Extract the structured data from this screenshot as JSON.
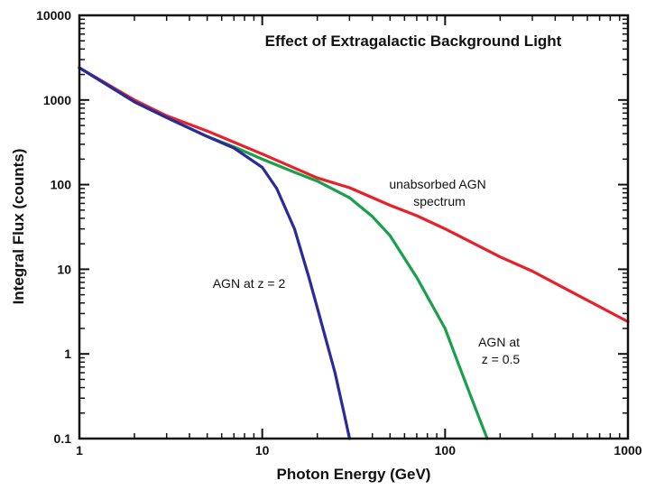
{
  "chart_data": {
    "type": "line",
    "title": "Effect of Extragalactic Background Light",
    "xlabel": "Photon Energy (GeV)",
    "ylabel": "Integral Flux (counts)",
    "xscale": "log",
    "yscale": "log",
    "xlim": [
      1,
      1000
    ],
    "ylim": [
      0.1,
      10000
    ],
    "grid": false,
    "x_ticks": [
      {
        "value": 1,
        "label": "1"
      },
      {
        "value": 10,
        "label": "10"
      },
      {
        "value": 100,
        "label": "100"
      },
      {
        "value": 1000,
        "label": "1000"
      }
    ],
    "y_ticks": [
      {
        "value": 0.1,
        "label": "0.1"
      },
      {
        "value": 1,
        "label": "1"
      },
      {
        "value": 10,
        "label": "10"
      },
      {
        "value": 100,
        "label": "100"
      },
      {
        "value": 1000,
        "label": "1000"
      },
      {
        "value": 10000,
        "label": "10000"
      }
    ],
    "series": [
      {
        "color": "#e8202a",
        "x": [
          1,
          2,
          3,
          5,
          10,
          20,
          30,
          50,
          70,
          100,
          200,
          300,
          500,
          1000
        ],
        "y": [
          2400,
          1000,
          650,
          430,
          230,
          120,
          92,
          57,
          43,
          30,
          14,
          9.5,
          5.3,
          2.4
        ]
      },
      {
        "color": "#1aa04a",
        "x": [
          1,
          2,
          3,
          5,
          7,
          10,
          15,
          20,
          30,
          40,
          50,
          70,
          100,
          120,
          150,
          170
        ],
        "y": [
          2400,
          950,
          620,
          370,
          280,
          200,
          140,
          110,
          70,
          42,
          25,
          8,
          2,
          0.7,
          0.2,
          0.1
        ]
      },
      {
        "color": "#2a2a9a",
        "x": [
          1,
          2,
          3,
          5,
          7,
          10,
          12,
          15,
          18,
          20,
          25,
          28,
          30
        ],
        "y": [
          2400,
          950,
          620,
          370,
          270,
          160,
          90,
          30,
          8,
          3.5,
          0.6,
          0.2,
          0.1
        ]
      }
    ],
    "annotations": [
      {
        "lines": [
          "unabsorbed AGN",
          "spectrum"
        ]
      },
      {
        "lines": [
          "AGN at z = 2"
        ]
      },
      {
        "lines": [
          "AGN at",
          "z = 0.5"
        ]
      }
    ]
  }
}
